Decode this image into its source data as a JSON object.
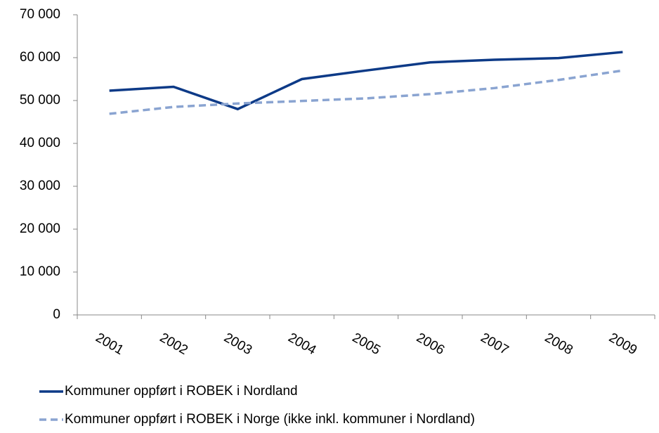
{
  "chart_data": {
    "type": "line",
    "categories": [
      "2001",
      "2002",
      "2003",
      "2004",
      "2005",
      "2006",
      "2007",
      "2008",
      "2009"
    ],
    "series": [
      {
        "name": "Kommuner oppført i ROBEK i Nordland",
        "color": "#0d3a87",
        "dashed": false,
        "values": [
          52300,
          53200,
          48000,
          55000,
          57000,
          58900,
          59500,
          59900,
          61300
        ]
      },
      {
        "name": "Kommuner oppført i ROBEK i Norge (ikke inkl. kommuner i Nordland)",
        "color": "#8aa4d1",
        "dashed": true,
        "values": [
          46900,
          48500,
          49300,
          49900,
          50500,
          51500,
          52900,
          54800,
          57000
        ]
      }
    ],
    "ylim": [
      0,
      70000
    ],
    "yticks": [
      0,
      {
        "value": 10000,
        "label": "10 000"
      },
      {
        "value": 20000,
        "label": "20 000"
      },
      {
        "value": 30000,
        "label": "30 000"
      },
      {
        "value": 40000,
        "label": "40 000"
      },
      {
        "value": 50000,
        "label": "50 000"
      },
      {
        "value": 60000,
        "label": "60 000"
      },
      {
        "value": 70000,
        "label": "70 000"
      }
    ],
    "grid": false
  }
}
